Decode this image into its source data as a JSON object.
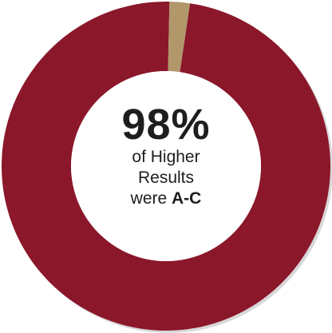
{
  "chart_data": {
    "type": "pie",
    "variant": "donut",
    "slices": [
      {
        "label": "A-C",
        "value": 98,
        "color": "#8b172b"
      },
      {
        "label": "",
        "value": 2,
        "color": "#b2976b"
      }
    ],
    "center_value": "98",
    "center_unit": "%",
    "caption_line1": "of Higher",
    "caption_line2": "Results",
    "caption_line3_prefix": "were ",
    "caption_line3_bold": "A-C"
  }
}
